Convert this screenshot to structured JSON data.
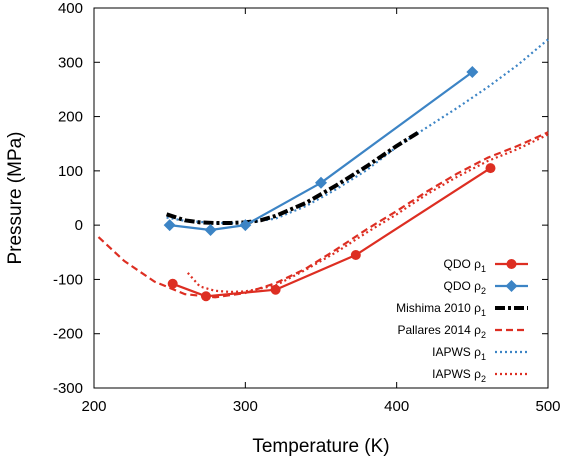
{
  "chart_data": {
    "type": "line",
    "xlabel": "Temperature (K)",
    "ylabel": "Pressure (MPa)",
    "xlim": [
      200,
      500
    ],
    "ylim": [
      -300,
      400
    ],
    "xticks": [
      200,
      300,
      400,
      500
    ],
    "yticks": [
      -300,
      -200,
      -100,
      0,
      100,
      200,
      300,
      400
    ],
    "xtick_labels": [
      "200",
      "300",
      "400",
      "500"
    ],
    "ytick_labels": [
      "-300",
      "-200",
      "-100",
      "0",
      "100",
      "200",
      "300",
      "400"
    ],
    "grid": false,
    "legend_position": "bottom-right",
    "series": [
      {
        "name": "QDO ρ1",
        "label_main": "QDO ρ",
        "label_sub": "1",
        "color": "#dd2e22",
        "style": "solid",
        "marker": "circle",
        "x": [
          252,
          274,
          320,
          373,
          462
        ],
        "y": [
          -108,
          -131,
          -119,
          -55,
          105
        ]
      },
      {
        "name": "QDO ρ2",
        "label_main": "QDO ρ",
        "label_sub": "2",
        "color": "#3c84c5",
        "style": "solid",
        "marker": "diamond",
        "x": [
          250,
          277,
          300,
          350,
          450
        ],
        "y": [
          0,
          -9,
          0,
          78,
          282
        ]
      },
      {
        "name": "Mishima 2010 ρ1",
        "label_main": "Mishima 2010 ρ",
        "label_sub": "1",
        "color": "#000000",
        "style": "dashdot",
        "marker": "none",
        "x": [
          248,
          260,
          270,
          280,
          290,
          300,
          310,
          320,
          340,
          360,
          380,
          400,
          415
        ],
        "y": [
          20,
          9,
          5,
          4,
          4,
          5,
          9,
          17,
          41,
          73,
          108,
          146,
          172
        ]
      },
      {
        "name": "Pallares 2014 ρ2",
        "label_main": "Pallares 2014 ρ",
        "label_sub": "2",
        "color": "#dd2e22",
        "style": "dashed",
        "marker": "none",
        "x": [
          203,
          220,
          240,
          260,
          280,
          300,
          320,
          340,
          360,
          380,
          400,
          420,
          440,
          460,
          480,
          500
        ],
        "y": [
          -22,
          -66,
          -104,
          -127,
          -133,
          -125,
          -107,
          -80,
          -45,
          -8,
          26,
          62,
          95,
          124,
          146,
          171
        ]
      },
      {
        "name": "IAPWS ρ1",
        "label_main": "IAPWS ρ",
        "label_sub": "1",
        "color": "#3c84c5",
        "style": "dotted",
        "marker": "none",
        "x": [
          248,
          260,
          280,
          300,
          320,
          340,
          360,
          380,
          400,
          420,
          440,
          460,
          480,
          500
        ],
        "y": [
          14,
          8,
          4,
          4,
          12,
          35,
          66,
          101,
          144,
          180,
          216,
          254,
          295,
          342
        ]
      },
      {
        "name": "IAPWS ρ2",
        "label_main": "IAPWS ρ",
        "label_sub": "2",
        "color": "#dd2e22",
        "style": "dotted",
        "marker": "none",
        "x": [
          262,
          270,
          280,
          290,
          300,
          320,
          340,
          360,
          380,
          400,
          420,
          440,
          460,
          480,
          500
        ],
        "y": [
          -88,
          -113,
          -121,
          -123,
          -122,
          -111,
          -82,
          -50,
          -14,
          20,
          57,
          89,
          118,
          140,
          167
        ]
      }
    ]
  }
}
